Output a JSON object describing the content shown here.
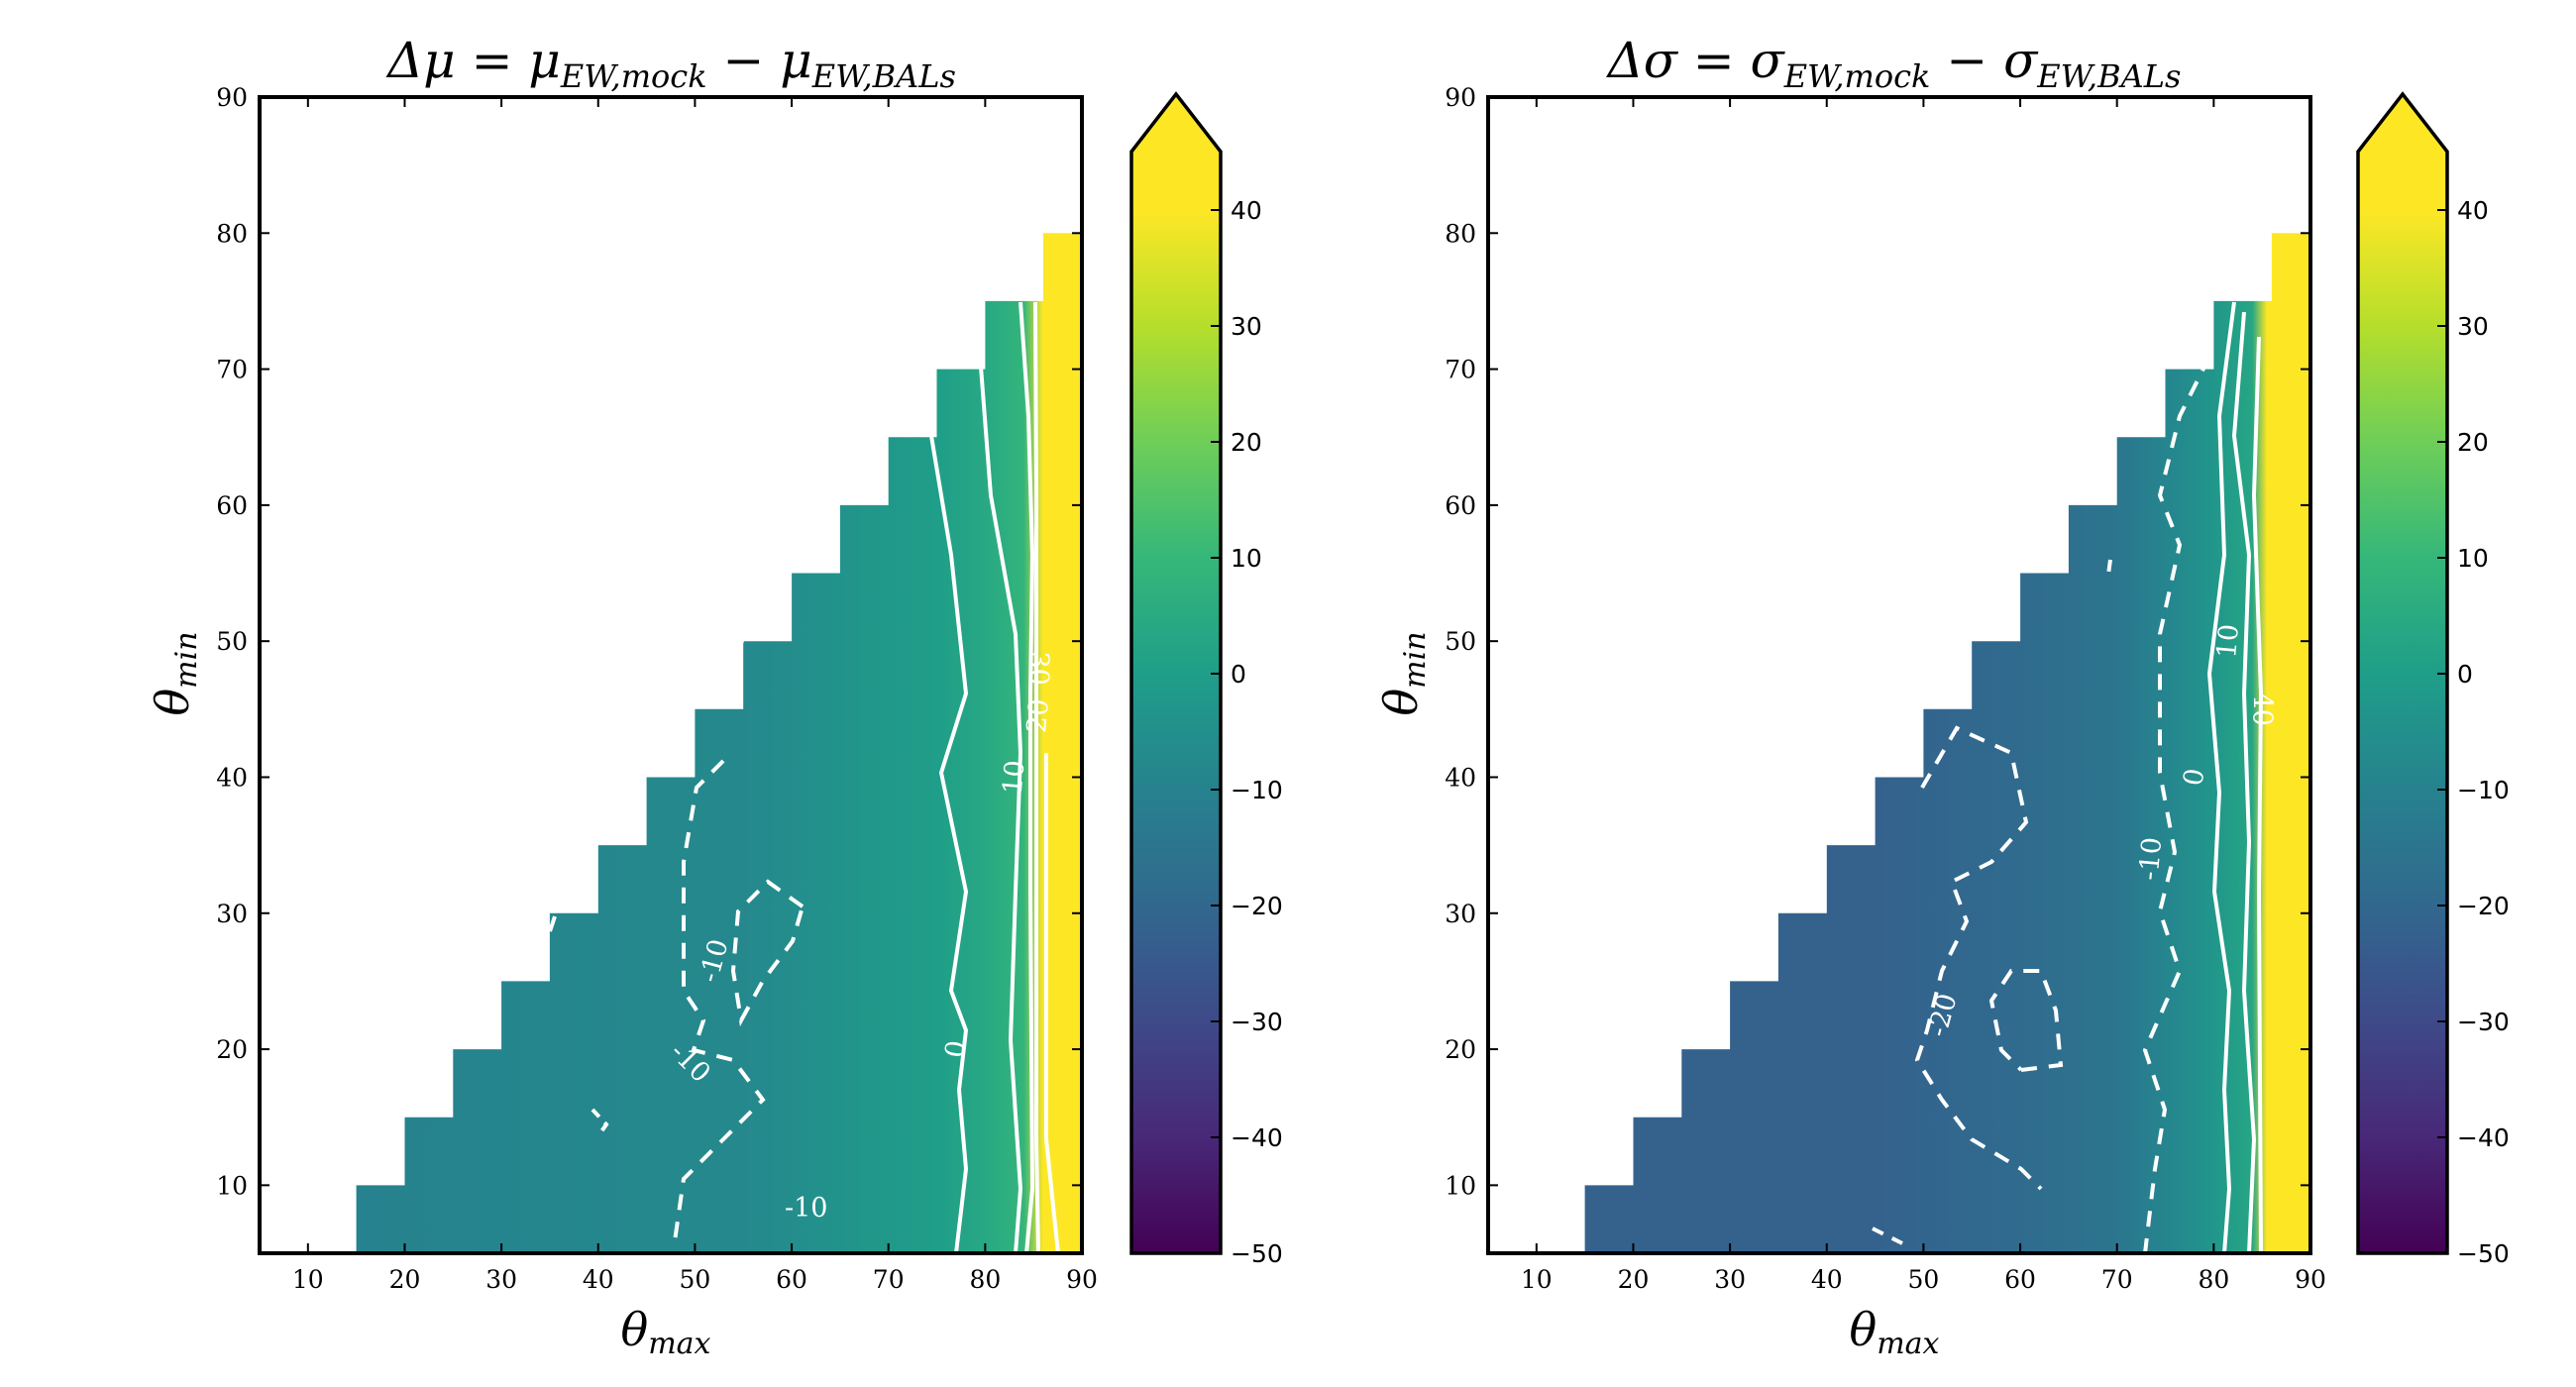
{
  "chart_data": [
    {
      "type": "heatmap",
      "title": "Δμ = μ_EW,mock − μ_EW,BALs",
      "title_main": "Δμ = μ",
      "title_sub1": "EW,mock",
      "title_mid": " − μ",
      "title_sub2": "EW,BALs",
      "xlabel_main": "θ",
      "xlabel_sub": "max",
      "ylabel_main": "θ",
      "ylabel_sub": "min",
      "xlim": [
        5,
        90
      ],
      "ylim": [
        5,
        90
      ],
      "xticks": [
        10,
        20,
        30,
        40,
        50,
        60,
        70,
        80,
        90
      ],
      "yticks": [
        10,
        20,
        30,
        40,
        50,
        60,
        70,
        80,
        90
      ],
      "colorbar": {
        "ticks": [
          40,
          30,
          20,
          10,
          0,
          -10,
          -20,
          -30,
          -40,
          -50
        ],
        "range": [
          -50,
          50
        ],
        "extend": "max"
      },
      "domain_edge": [
        [
          15,
          5
        ],
        [
          15,
          10
        ],
        [
          20,
          10
        ],
        [
          20,
          15
        ],
        [
          25,
          15
        ],
        [
          25,
          20
        ],
        [
          30,
          20
        ],
        [
          30,
          25
        ],
        [
          35,
          25
        ],
        [
          35,
          30
        ],
        [
          40,
          30
        ],
        [
          40,
          35
        ],
        [
          45,
          35
        ],
        [
          45,
          40
        ],
        [
          50,
          40
        ],
        [
          50,
          45
        ],
        [
          55,
          45
        ],
        [
          55,
          50
        ],
        [
          60,
          50
        ],
        [
          60,
          55
        ],
        [
          65,
          55
        ],
        [
          65,
          60
        ],
        [
          70,
          60
        ],
        [
          70,
          65
        ],
        [
          75,
          65
        ],
        [
          75,
          70
        ],
        [
          80,
          70
        ],
        [
          80,
          75
        ],
        [
          84,
          75
        ]
      ],
      "value_columns": [
        {
          "x": 15,
          "v": -10
        },
        {
          "x": 30,
          "v": -9
        },
        {
          "x": 45,
          "v": -8
        },
        {
          "x": 55,
          "v": -8
        },
        {
          "x": 65,
          "v": -4
        },
        {
          "x": 75,
          "v": 0
        },
        {
          "x": 80,
          "v": 4
        },
        {
          "x": 84,
          "v": 9
        },
        {
          "x": 86,
          "v": 48
        },
        {
          "x": 90,
          "v": 48
        }
      ],
      "contour_labels": [
        {
          "text": "-10",
          "x": 52,
          "y": 26.5,
          "rot": -75
        },
        {
          "text": "-10",
          "x": 49.5,
          "y": 19,
          "rot": 45
        },
        {
          "text": "-10",
          "x": 61.5,
          "y": 8.3,
          "rot": 0
        },
        {
          "text": "0",
          "x": 77,
          "y": 20,
          "rot": -80
        },
        {
          "text": "10",
          "x": 83,
          "y": 40,
          "rot": -85
        },
        {
          "text": "20",
          "x": 85.5,
          "y": 44.5,
          "rot": -85
        },
        {
          "text": "30",
          "x": 85.5,
          "y": 48,
          "rot": 90
        }
      ]
    },
    {
      "type": "heatmap",
      "title": "Δσ = σ_EW,mock − σ_EW,BALs",
      "title_main": "Δσ = σ",
      "title_sub1": "EW,mock",
      "title_mid": " − σ",
      "title_sub2": "EW,BALs",
      "xlabel_main": "θ",
      "xlabel_sub": "max",
      "ylabel_main": "θ",
      "ylabel_sub": "min",
      "xlim": [
        5,
        90
      ],
      "ylim": [
        5,
        90
      ],
      "xticks": [
        10,
        20,
        30,
        40,
        50,
        60,
        70,
        80,
        90
      ],
      "yticks": [
        10,
        20,
        30,
        40,
        50,
        60,
        70,
        80,
        90
      ],
      "colorbar": {
        "ticks": [
          40,
          30,
          20,
          10,
          0,
          -10,
          -20,
          -30,
          -40,
          -50
        ],
        "range": [
          -50,
          50
        ],
        "extend": "max"
      },
      "domain_edge": [
        [
          15,
          5
        ],
        [
          15,
          10
        ],
        [
          20,
          10
        ],
        [
          20,
          15
        ],
        [
          25,
          15
        ],
        [
          25,
          20
        ],
        [
          30,
          20
        ],
        [
          30,
          25
        ],
        [
          35,
          25
        ],
        [
          35,
          30
        ],
        [
          40,
          30
        ],
        [
          40,
          35
        ],
        [
          45,
          35
        ],
        [
          45,
          40
        ],
        [
          50,
          40
        ],
        [
          50,
          45
        ],
        [
          55,
          45
        ],
        [
          55,
          50
        ],
        [
          60,
          50
        ],
        [
          60,
          55
        ],
        [
          65,
          55
        ],
        [
          65,
          60
        ],
        [
          70,
          60
        ],
        [
          70,
          65
        ],
        [
          75,
          65
        ],
        [
          75,
          70
        ],
        [
          80,
          70
        ],
        [
          80,
          75
        ],
        [
          84,
          75
        ]
      ],
      "value_columns": [
        {
          "x": 15,
          "v": -22
        },
        {
          "x": 45,
          "v": -22
        },
        {
          "x": 60,
          "v": -19
        },
        {
          "x": 70,
          "v": -15
        },
        {
          "x": 75,
          "v": -9
        },
        {
          "x": 80,
          "v": -3
        },
        {
          "x": 84,
          "v": 3
        },
        {
          "x": 85.5,
          "v": 48
        },
        {
          "x": 90,
          "v": 48
        }
      ],
      "contour_labels": [
        {
          "text": "-20",
          "x": 52,
          "y": 22.5,
          "rot": -75
        },
        {
          "text": "-10",
          "x": 73.5,
          "y": 34,
          "rot": -85
        },
        {
          "text": "0",
          "x": 78,
          "y": 40,
          "rot": -80
        },
        {
          "text": "10",
          "x": 81.5,
          "y": 50,
          "rot": -85
        },
        {
          "text": "40",
          "x": 85,
          "y": 45,
          "rot": 90
        }
      ]
    }
  ]
}
